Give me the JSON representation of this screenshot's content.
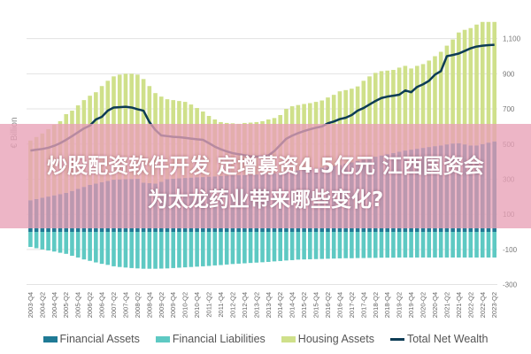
{
  "headline": {
    "line1": "炒股配资软件开发 定增募资4.5亿元 江西国资会",
    "line2": "为太龙药业带来哪些变化?"
  },
  "chart_data": {
    "type": "bar",
    "stacked": true,
    "ylabel": "€ Billion",
    "ylim": [
      -300,
      1200
    ],
    "yticks": [
      1100,
      900,
      700,
      500,
      300,
      100,
      -100,
      -300
    ],
    "ytick_labels": [
      "1,100",
      "900",
      "700",
      "500",
      "300",
      "100",
      "-100",
      "-300"
    ],
    "y_axis_side": "right",
    "grid": true,
    "legend_position": "bottom",
    "categories": [
      "2003-Q4",
      "2004-Q1",
      "2004-Q2",
      "2004-Q3",
      "2004-Q4",
      "2005-Q1",
      "2005-Q2",
      "2005-Q3",
      "2005-Q4",
      "2006-Q1",
      "2006-Q2",
      "2006-Q3",
      "2006-Q4",
      "2007-Q1",
      "2007-Q2",
      "2007-Q3",
      "2007-Q4",
      "2008-Q1",
      "2008-Q2",
      "2008-Q3",
      "2008-Q4",
      "2009-Q1",
      "2009-Q2",
      "2009-Q3",
      "2009-Q4",
      "2010-Q1",
      "2010-Q2",
      "2010-Q3",
      "2010-Q4",
      "2011-Q1",
      "2011-Q2",
      "2011-Q3",
      "2011-Q4",
      "2012-Q1",
      "2012-Q2",
      "2012-Q3",
      "2012-Q4",
      "2013-Q1",
      "2013-Q2",
      "2013-Q3",
      "2013-Q4",
      "2014-Q1",
      "2014-Q2",
      "2014-Q3",
      "2014-Q4",
      "2015-Q1",
      "2015-Q2",
      "2015-Q3",
      "2015-Q4",
      "2016-Q1",
      "2016-Q2",
      "2016-Q3",
      "2016-Q4",
      "2017-Q1",
      "2017-Q2",
      "2017-Q3",
      "2017-Q4",
      "2018-Q1",
      "2018-Q2",
      "2018-Q3",
      "2018-Q4",
      "2019-Q1",
      "2019-Q2",
      "2019-Q3",
      "2019-Q4",
      "2020-Q1",
      "2020-Q2",
      "2020-Q3",
      "2020-Q4",
      "2021-Q1",
      "2021-Q2",
      "2021-Q3",
      "2021-Q4",
      "2022-Q1",
      "2022-Q2",
      "2022-Q3",
      "2022-Q4",
      "2023-Q1",
      "2023-Q2"
    ],
    "xtick_labels": [
      "2003-Q4",
      "2004-Q2",
      "2004-Q4",
      "2005-Q2",
      "2005-Q4",
      "2006-Q2",
      "2006-Q4",
      "2007-Q2",
      "2007-Q4",
      "2008-Q2",
      "2008-Q4",
      "2009-Q2",
      "2009-Q4",
      "2010-Q2",
      "2010-Q4",
      "2011-Q2",
      "2011-Q4",
      "2012-Q2",
      "2012-Q4",
      "2013-Q2",
      "2013-Q4",
      "2014-Q2",
      "2014-Q4",
      "2015-Q2",
      "2015-Q4",
      "2016-Q2",
      "2016-Q4",
      "2017-Q2",
      "2017-Q4",
      "2018-Q2",
      "2018-Q4",
      "2019-Q2",
      "2019-Q4",
      "2020-Q2",
      "2020-Q4",
      "2021-Q2",
      "2021-Q4",
      "2022-Q2",
      "2022-Q4",
      "2023-Q2"
    ],
    "series": [
      {
        "name": "Financial Assets",
        "type": "bar",
        "color": "#1f7a95",
        "values": [
          180,
          187,
          194,
          201,
          208,
          215,
          222,
          233,
          245,
          256,
          267,
          275,
          283,
          290,
          297,
          299,
          300,
          301,
          302,
          280,
          277,
          275,
          285,
          300,
          303,
          305,
          307,
          309,
          311,
          312,
          314,
          316,
          318,
          320,
          322,
          323,
          324,
          326,
          327,
          329,
          330,
          334,
          338,
          342,
          346,
          350,
          353,
          357,
          362,
          366,
          370,
          375,
          380,
          388,
          396,
          404,
          412,
          420,
          428,
          435,
          442,
          449,
          456,
          463,
          468,
          473,
          478,
          483,
          488,
          492,
          498,
          503,
          505,
          498,
          492,
          492,
          500,
          508,
          515
        ]
      },
      {
        "name": "Financial Liabilities",
        "type": "bar",
        "color": "#5ec9c3",
        "values": [
          -86,
          -93,
          -100,
          -106,
          -112,
          -119,
          -125,
          -136,
          -146,
          -157,
          -165,
          -174,
          -182,
          -188,
          -196,
          -200,
          -203,
          -206,
          -208,
          -210,
          -210,
          -210,
          -209,
          -208,
          -206,
          -204,
          -202,
          -200,
          -198,
          -196,
          -194,
          -191,
          -189,
          -186,
          -183,
          -181,
          -179,
          -177,
          -175,
          -173,
          -171,
          -168,
          -166,
          -163,
          -161,
          -158,
          -157,
          -156,
          -155,
          -154,
          -153,
          -152,
          -151,
          -150,
          -150,
          -149,
          -149,
          -148,
          -148,
          -147,
          -147,
          -147,
          -146,
          -146,
          -146,
          -146,
          -146,
          -146,
          -146,
          -146,
          -146,
          -146,
          -146,
          -146,
          -146,
          -146,
          -146,
          -146,
          -146
        ]
      },
      {
        "name": "Housing Assets",
        "type": "bar",
        "color": "#cfe08a",
        "values": [
          340,
          353,
          366,
          384,
          402,
          415,
          448,
          457,
          475,
          494,
          508,
          520,
          547,
          570,
          588,
          596,
          600,
          599,
          593,
          590,
          553,
          515,
          485,
          455,
          447,
          440,
          433,
          416,
          394,
          373,
          346,
          324,
          307,
          300,
          296,
          292,
          296,
          296,
          298,
          301,
          310,
          314,
          327,
          358,
          369,
          372,
          375,
          376,
          378,
          382,
          395,
          405,
          420,
          419,
          419,
          424,
          448,
          465,
          477,
          480,
          476,
          473,
          479,
          482,
          462,
          472,
          477,
          492,
          512,
          533,
          562,
          592,
          630,
          652,
          668,
          688,
          695,
          687,
          680
        ]
      },
      {
        "name": "Total Net Wealth",
        "type": "line",
        "color": "#0d3c55",
        "values": [
          463,
          468,
          472,
          479,
          490,
          505,
          524,
          545,
          567,
          589,
          605,
          640,
          655,
          690,
          708,
          710,
          712,
          708,
          698,
          690,
          625,
          580,
          549,
          545,
          541,
          539,
          535,
          531,
          527,
          524,
          505,
          485,
          470,
          458,
          448,
          442,
          436,
          430,
          429,
          428,
          435,
          460,
          495,
          530,
          548,
          562,
          574,
          584,
          593,
          600,
          618,
          628,
          642,
          650,
          665,
          690,
          705,
          725,
          745,
          762,
          770,
          775,
          781,
          805,
          795,
          825,
          840,
          860,
          895,
          915,
          1000,
          1007,
          1015,
          1030,
          1045,
          1055,
          1060,
          1063,
          1065
        ]
      }
    ]
  }
}
